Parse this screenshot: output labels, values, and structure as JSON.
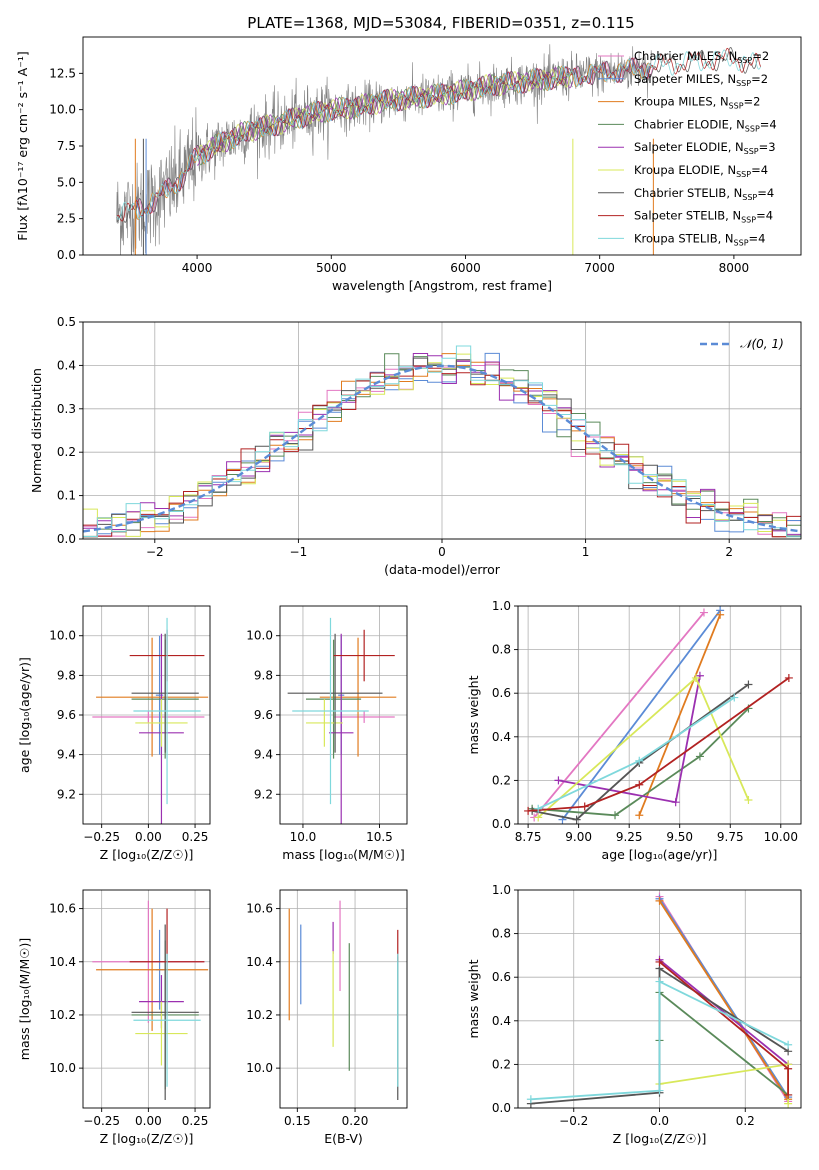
{
  "figure_title": "PLATE=1368, MJD=53084, FIBERID=0351, z=0.115",
  "colors": {
    "chabrier_miles": "#e377c2",
    "salpeter_miles": "#5b8bd6",
    "kroupa_miles": "#e07b1f",
    "chabrier_elodie": "#5a8a5a",
    "salpeter_elodie": "#9b30b0",
    "kroupa_elodie": "#d8e85a",
    "chabrier_stelib": "#555555",
    "salpeter_stelib": "#b22222",
    "kroupa_stelib": "#7fd8dc",
    "data": "#808080",
    "gaussian": "#5b8bd6"
  },
  "chart_data": [
    {
      "id": "spectrum",
      "type": "line",
      "title": "PLATE=1368, MJD=53084, FIBERID=0351, z=0.115",
      "xlabel": "wavelength [Angstrom, rest frame]",
      "ylabel": "Flux [fλ10⁻¹⁷ erg cm⁻² s⁻¹ A⁻¹]",
      "xlim": [
        3150,
        8500
      ],
      "ylim": [
        0,
        15
      ],
      "xticks": [
        "4000",
        "5000",
        "6000",
        "7000",
        "8000"
      ],
      "yticks": [
        "0.0",
        "2.5",
        "5.0",
        "7.5",
        "10.0",
        "12.5"
      ],
      "legend_position": "right",
      "legend": [
        {
          "base": "Chabrier MILES, N",
          "sub": "SSP",
          "tail": "=2",
          "color": "#e377c2"
        },
        {
          "base": "Salpeter MILES, N",
          "sub": "SSP",
          "tail": "=2",
          "color": "#5b8bd6"
        },
        {
          "base": "Kroupa MILES, N",
          "sub": "SSP",
          "tail": "=2",
          "color": "#e07b1f"
        },
        {
          "base": "Chabrier ELODIE, N",
          "sub": "SSP",
          "tail": "=4",
          "color": "#5a8a5a"
        },
        {
          "base": "Salpeter ELODIE, N",
          "sub": "SSP",
          "tail": "=3",
          "color": "#9b30b0"
        },
        {
          "base": "Kroupa ELODIE, N",
          "sub": "SSP",
          "tail": "=4",
          "color": "#d8e85a"
        },
        {
          "base": "Chabrier STELIB, N",
          "sub": "SSP",
          "tail": "=4",
          "color": "#555555"
        },
        {
          "base": "Salpeter STELIB, N",
          "sub": "SSP",
          "tail": "=4",
          "color": "#b22222"
        },
        {
          "base": "Kroupa STELIB, N",
          "sub": "SSP",
          "tail": "=4",
          "color": "#7fd8dc"
        }
      ],
      "continuum": {
        "x": [
          3400,
          3600,
          3800,
          3900,
          4000,
          4200,
          4400,
          4600,
          4800,
          5000,
          5200,
          5400,
          5600,
          5800,
          6000,
          6200,
          6400,
          6600,
          6800,
          7000,
          7200,
          7400,
          7600,
          7800,
          8000,
          8200
        ],
        "y": [
          2.8,
          3.2,
          4.6,
          5.5,
          6.8,
          7.8,
          8.6,
          9.0,
          9.6,
          10.0,
          10.2,
          10.6,
          10.8,
          11.0,
          11.3,
          11.7,
          11.9,
          12.1,
          12.3,
          12.5,
          12.7,
          13.0,
          13.2,
          13.4,
          13.5,
          13.0
        ]
      }
    },
    {
      "id": "residuals",
      "type": "line",
      "xlabel": "(data-model)/error",
      "ylabel": "Normed distribution",
      "xlim": [
        -2.5,
        2.5
      ],
      "ylim": [
        0,
        0.5
      ],
      "xticks": [
        "−2",
        "−1",
        "0",
        "1",
        "2"
      ],
      "yticks": [
        "0.0",
        "0.1",
        "0.2",
        "0.3",
        "0.4",
        "0.5"
      ],
      "grid": true,
      "legend": [
        {
          "label": "𝒩(0, 1)",
          "color": "#5b8bd6"
        }
      ],
      "legend_position": "top-right",
      "bin_width": 0.1
    },
    {
      "id": "age_vs_Z",
      "type": "scatter",
      "xlabel": "Z [log₁₀(Z/Z☉)]",
      "ylabel": "age  [log₁₀(age/yr)]",
      "xlim": [
        -0.35,
        0.33
      ],
      "ylim": [
        9.05,
        10.15
      ],
      "xticks": [
        "−0.25",
        "0.00",
        "0.25"
      ],
      "yticks": [
        "9.2",
        "9.4",
        "9.6",
        "9.8",
        "10.0"
      ],
      "grid": true,
      "points": [
        {
          "x": 0.0,
          "xerr": 0.3,
          "y": 9.59,
          "yerr": 0.03,
          "color": "#e377c2"
        },
        {
          "x": 0.06,
          "xerr": 0.02,
          "y": 9.7,
          "yerr": 0.3,
          "color": "#5b8bd6"
        },
        {
          "x": 0.02,
          "xerr": 0.3,
          "y": 9.69,
          "yerr": 0.3,
          "color": "#e07b1f"
        },
        {
          "x": 0.09,
          "xerr": 0.18,
          "y": 9.68,
          "yerr": 0.3,
          "color": "#5a8a5a"
        },
        {
          "x": 0.07,
          "xerr": 0.12,
          "y": 9.51,
          "yerr": 0.5,
          "color": "#9b30b0"
        },
        {
          "x": 0.07,
          "xerr": 0.14,
          "y": 9.56,
          "yerr": 0.12,
          "color": "#d8e85a"
        },
        {
          "x": 0.09,
          "xerr": 0.18,
          "y": 9.71,
          "yerr": 0.3,
          "color": "#555555"
        },
        {
          "x": 0.1,
          "xerr": 0.2,
          "y": 9.9,
          "yerr": 0.13,
          "color": "#b22222"
        },
        {
          "x": 0.1,
          "xerr": 0.18,
          "y": 9.62,
          "yerr": 0.47,
          "color": "#7fd8dc"
        }
      ]
    },
    {
      "id": "age_vs_mass",
      "type": "scatter",
      "xlabel": "mass [log₁₀(M/M☉)]",
      "ylabel": "",
      "xlim": [
        9.85,
        10.68
      ],
      "ylim": [
        9.05,
        10.15
      ],
      "xticks": [
        "10.0",
        "10.5"
      ],
      "yticks": [
        "9.2",
        "9.4",
        "9.6",
        "9.8",
        "10.0"
      ],
      "grid": true,
      "points": [
        {
          "x": 10.4,
          "xerr": 0.2,
          "y": 9.59,
          "yerr": 0.03,
          "color": "#e377c2"
        },
        {
          "x": 10.25,
          "xerr": 0.02,
          "y": 9.7,
          "yerr": 0.3,
          "color": "#5b8bd6"
        },
        {
          "x": 10.36,
          "xerr": 0.25,
          "y": 9.69,
          "yerr": 0.3,
          "color": "#e07b1f"
        },
        {
          "x": 10.2,
          "xerr": 0.18,
          "y": 9.68,
          "yerr": 0.3,
          "color": "#5a8a5a"
        },
        {
          "x": 10.25,
          "xerr": 0.08,
          "y": 9.51,
          "yerr": 0.5,
          "color": "#9b30b0"
        },
        {
          "x": 10.14,
          "xerr": 0.12,
          "y": 9.56,
          "yerr": 0.12,
          "color": "#d8e85a"
        },
        {
          "x": 10.21,
          "xerr": 0.31,
          "y": 9.71,
          "yerr": 0.3,
          "color": "#555555"
        },
        {
          "x": 10.4,
          "xerr": 0.2,
          "y": 9.9,
          "yerr": 0.13,
          "color": "#b22222"
        },
        {
          "x": 10.18,
          "xerr": 0.25,
          "y": 9.62,
          "yerr": 0.47,
          "color": "#7fd8dc"
        }
      ]
    },
    {
      "id": "mass_weight_vs_age",
      "type": "line",
      "xlabel": "age  [log₁₀(age/yr)]",
      "ylabel": "mass weight",
      "xlim": [
        8.7,
        10.1
      ],
      "ylim": [
        0,
        1.0
      ],
      "xticks": [
        "8.75",
        "9.00",
        "9.25",
        "9.50",
        "9.75",
        "10.00"
      ],
      "yticks": [
        "0.0",
        "0.2",
        "0.4",
        "0.6",
        "0.8",
        "1.0"
      ],
      "grid": true,
      "series": [
        {
          "color": "#e377c2",
          "x": [
            8.78,
            9.62
          ],
          "y": [
            0.03,
            0.97
          ]
        },
        {
          "color": "#5b8bd6",
          "x": [
            8.92,
            9.7
          ],
          "y": [
            0.02,
            0.98
          ]
        },
        {
          "color": "#e07b1f",
          "x": [
            9.3,
            9.7
          ],
          "y": [
            0.04,
            0.96
          ]
        },
        {
          "color": "#5a8a5a",
          "x": [
            8.77,
            9.18,
            9.6,
            9.84
          ],
          "y": [
            0.07,
            0.04,
            0.31,
            0.53
          ]
        },
        {
          "color": "#9b30b0",
          "x": [
            8.9,
            9.48,
            9.6
          ],
          "y": [
            0.2,
            0.1,
            0.68
          ]
        },
        {
          "color": "#d8e85a",
          "x": [
            8.8,
            9.58,
            9.84
          ],
          "y": [
            0.03,
            0.67,
            0.11
          ]
        },
        {
          "color": "#555555",
          "x": [
            8.77,
            8.99,
            9.3,
            9.84
          ],
          "y": [
            0.06,
            0.02,
            0.28,
            0.64
          ]
        },
        {
          "color": "#b22222",
          "x": [
            8.75,
            9.03,
            9.3,
            10.04
          ],
          "y": [
            0.06,
            0.08,
            0.18,
            0.67
          ]
        },
        {
          "color": "#7fd8dc",
          "x": [
            8.8,
            9.3,
            9.77
          ],
          "y": [
            0.07,
            0.29,
            0.58
          ]
        }
      ]
    },
    {
      "id": "mass_vs_Z",
      "type": "scatter",
      "xlabel": "Z [log₁₀(Z/Z☉)]",
      "ylabel": "mass [log₁₀(M/M☉)]",
      "xlim": [
        -0.35,
        0.33
      ],
      "ylim": [
        9.85,
        10.67
      ],
      "xticks": [
        "−0.25",
        "0.00",
        "0.25"
      ],
      "yticks": [
        "10.0",
        "10.2",
        "10.4",
        "10.6"
      ],
      "grid": true,
      "points": [
        {
          "x": 0.0,
          "xerr": 0.3,
          "y": 10.4,
          "yerr": 0.23,
          "color": "#e377c2"
        },
        {
          "x": 0.06,
          "xerr": 0.02,
          "y": 10.37,
          "yerr": 0.15,
          "color": "#5b8bd6"
        },
        {
          "x": 0.02,
          "xerr": 0.3,
          "y": 10.37,
          "yerr": 0.23,
          "color": "#e07b1f"
        },
        {
          "x": 0.09,
          "xerr": 0.18,
          "y": 10.2,
          "yerr": 0.28,
          "color": "#5a8a5a"
        },
        {
          "x": 0.07,
          "xerr": 0.12,
          "y": 10.25,
          "yerr": 0.1,
          "color": "#9b30b0"
        },
        {
          "x": 0.07,
          "xerr": 0.14,
          "y": 10.13,
          "yerr": 0.12,
          "color": "#d8e85a"
        },
        {
          "x": 0.09,
          "xerr": 0.18,
          "y": 10.21,
          "yerr": 0.33,
          "color": "#555555"
        },
        {
          "x": 0.1,
          "xerr": 0.2,
          "y": 10.4,
          "yerr": 0.2,
          "color": "#b22222"
        },
        {
          "x": 0.1,
          "xerr": 0.18,
          "y": 10.18,
          "yerr": 0.25,
          "color": "#7fd8dc"
        }
      ]
    },
    {
      "id": "mass_vs_ebv",
      "type": "scatter",
      "xlabel": "E(B-V)",
      "ylabel": "",
      "xlim": [
        0.135,
        0.245
      ],
      "ylim": [
        9.85,
        10.67
      ],
      "xticks": [
        "0.15",
        "0.20"
      ],
      "yticks": [
        "10.0",
        "10.2",
        "10.4",
        "10.6"
      ],
      "grid": true,
      "points": [
        {
          "x": 0.187,
          "y": 10.46,
          "yerr": 0.17,
          "color": "#e377c2"
        },
        {
          "x": 0.153,
          "y": 10.39,
          "yerr": 0.15,
          "color": "#5b8bd6"
        },
        {
          "x": 0.143,
          "y": 10.39,
          "yerr": 0.21,
          "color": "#e07b1f"
        },
        {
          "x": 0.195,
          "y": 10.23,
          "yerr": 0.24,
          "color": "#5a8a5a"
        },
        {
          "x": 0.181,
          "y": 10.49,
          "yerr": 0.06,
          "color": "#9b30b0"
        },
        {
          "x": 0.181,
          "y": 10.26,
          "yerr": 0.18,
          "color": "#d8e85a"
        },
        {
          "x": 0.237,
          "y": 10.15,
          "yerr": 0.27,
          "color": "#555555"
        },
        {
          "x": 0.237,
          "y": 10.46,
          "yerr": 0.06,
          "color": "#b22222"
        },
        {
          "x": 0.237,
          "y": 10.18,
          "yerr": 0.25,
          "color": "#7fd8dc"
        }
      ]
    },
    {
      "id": "mass_weight_vs_Z",
      "type": "line",
      "xlabel": "Z [log₁₀(Z/Z☉)]",
      "ylabel": "mass weight",
      "xlim": [
        -0.33,
        0.33
      ],
      "ylim": [
        0,
        1.0
      ],
      "xticks": [
        "−0.2",
        "0.0",
        "0.2"
      ],
      "yticks": [
        "0.0",
        "0.2",
        "0.4",
        "0.6",
        "0.8",
        "1.0"
      ],
      "grid": true,
      "series": [
        {
          "color": "#e377c2",
          "x": [
            0.0,
            0.3
          ],
          "y": [
            0.97,
            0.03
          ]
        },
        {
          "color": "#5b8bd6",
          "x": [
            0.0,
            0.3
          ],
          "y": [
            0.96,
            0.05
          ]
        },
        {
          "color": "#e07b1f",
          "x": [
            0.0,
            0.3
          ],
          "y": [
            0.95,
            0.04
          ]
        },
        {
          "color": "#5a8a5a",
          "x": [
            0.0,
            0.0,
            0.3
          ],
          "y": [
            0.31,
            0.53,
            0.06
          ]
        },
        {
          "color": "#9b30b0",
          "x": [
            0.0,
            0.3
          ],
          "y": [
            0.68,
            0.2
          ]
        },
        {
          "color": "#d8e85a",
          "x": [
            0.0,
            0.3,
            0.3
          ],
          "y": [
            0.11,
            0.2,
            0.02
          ]
        },
        {
          "color": "#555555",
          "x": [
            -0.3,
            0.0,
            0.0,
            0.3
          ],
          "y": [
            0.02,
            0.07,
            0.64,
            0.26
          ]
        },
        {
          "color": "#b22222",
          "x": [
            0.0,
            0.3,
            0.3
          ],
          "y": [
            0.67,
            0.18,
            0.06
          ]
        },
        {
          "color": "#7fd8dc",
          "x": [
            -0.3,
            0.0,
            0.0,
            0.3
          ],
          "y": [
            0.04,
            0.08,
            0.58,
            0.29
          ]
        }
      ]
    }
  ]
}
